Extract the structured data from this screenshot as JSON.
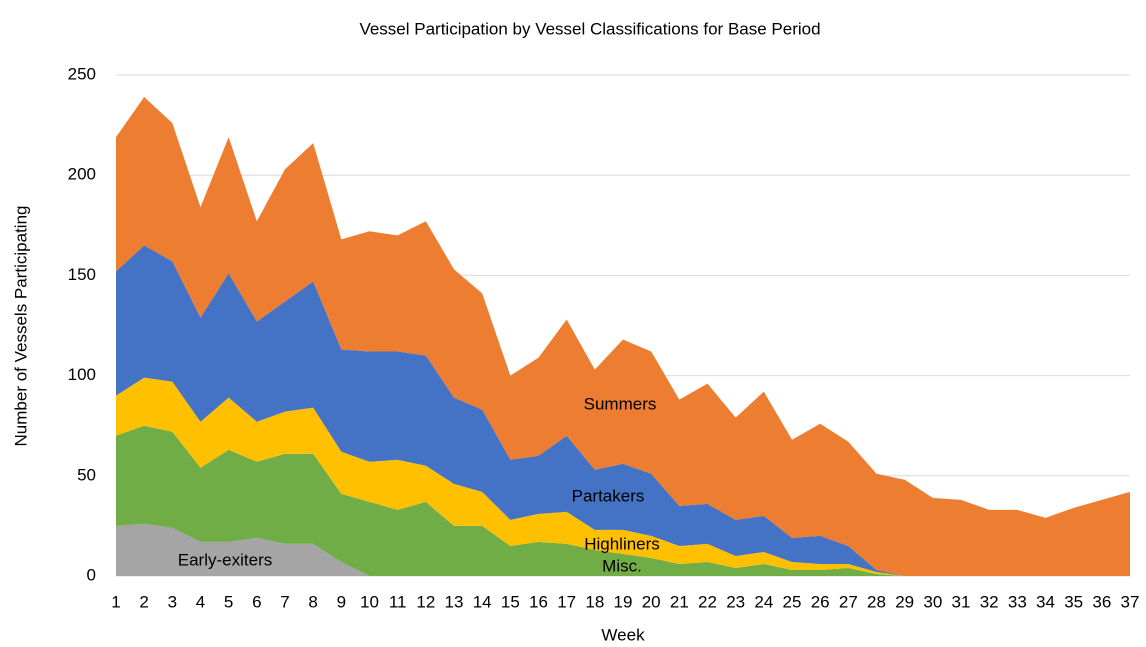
{
  "chart_data": {
    "type": "stacked_area",
    "title": "Vessel Participation by Vessel Classifications for Base Period",
    "x_label": "Week",
    "y_label": "Number of Vessels Participating",
    "categories": [
      "1",
      "2",
      "3",
      "4",
      "5",
      "6",
      "7",
      "8",
      "9",
      "10",
      "11",
      "12",
      "13",
      "14",
      "15",
      "16",
      "17",
      "18",
      "19",
      "20",
      "21",
      "22",
      "23",
      "24",
      "25",
      "26",
      "27",
      "28",
      "29",
      "30",
      "31",
      "32",
      "33",
      "34",
      "35",
      "36",
      "37"
    ],
    "ylim": [
      0,
      250
    ],
    "yticks": [
      0,
      50,
      100,
      150,
      200,
      250
    ],
    "grid": true,
    "series": [
      {
        "name": "Early-exiters",
        "color": "#a5a5a5",
        "values": [
          25,
          26,
          24,
          17,
          17,
          19,
          16,
          16,
          7,
          0,
          0,
          0,
          0,
          0,
          0,
          0,
          0,
          0,
          0,
          0,
          0,
          0,
          0,
          0,
          0,
          0,
          0,
          0,
          0,
          0,
          0,
          0,
          0,
          0,
          0,
          0,
          0
        ]
      },
      {
        "name": "Misc.",
        "color": "#70ad47",
        "values": [
          45,
          49,
          48,
          37,
          46,
          38,
          45,
          45,
          34,
          37,
          33,
          37,
          25,
          25,
          15,
          17,
          16,
          13,
          11,
          9,
          6,
          7,
          4,
          6,
          3,
          3,
          4,
          1,
          0,
          0,
          0,
          0,
          0,
          0,
          0,
          0,
          0
        ]
      },
      {
        "name": "Highliners",
        "color": "#ffc000",
        "values": [
          20,
          24,
          25,
          23,
          26,
          20,
          21,
          23,
          21,
          20,
          25,
          18,
          21,
          17,
          13,
          14,
          16,
          10,
          12,
          11,
          9,
          9,
          6,
          6,
          4,
          3,
          2,
          1,
          0,
          0,
          0,
          0,
          0,
          0,
          0,
          0,
          0
        ]
      },
      {
        "name": "Partakers",
        "color": "#4472c4",
        "values": [
          62,
          66,
          60,
          52,
          62,
          50,
          55,
          63,
          51,
          55,
          54,
          55,
          43,
          41,
          30,
          29,
          38,
          30,
          33,
          31,
          20,
          20,
          18,
          18,
          12,
          14,
          9,
          1,
          0,
          0,
          0,
          0,
          0,
          0,
          0,
          0,
          0
        ]
      },
      {
        "name": "Summers",
        "color": "#ed7d31",
        "values": [
          67,
          74,
          69,
          55,
          68,
          50,
          66,
          69,
          55,
          60,
          58,
          67,
          64,
          58,
          42,
          49,
          58,
          50,
          62,
          61,
          53,
          60,
          51,
          62,
          49,
          56,
          52,
          48,
          48,
          39,
          38,
          33,
          33,
          29,
          34,
          38,
          42
        ]
      }
    ]
  }
}
